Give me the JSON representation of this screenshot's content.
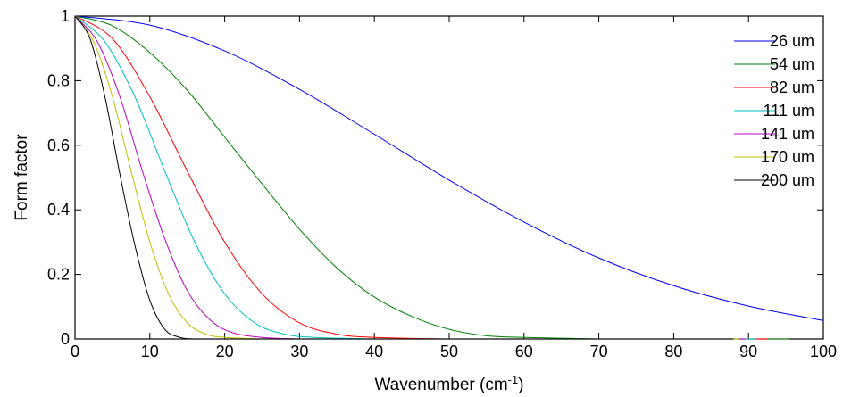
{
  "chart_data": {
    "type": "line",
    "title": "",
    "xlabel": "Wavenumber  (cm",
    "xlabel_sup": "-1",
    "xlabel_end": ")",
    "ylabel": "Form factor",
    "xlim": [
      0,
      100
    ],
    "ylim": [
      0,
      1
    ],
    "xticks": [
      0,
      10,
      20,
      30,
      40,
      50,
      60,
      70,
      80,
      90,
      100
    ],
    "yticks": [
      0,
      0.2,
      0.4,
      0.6,
      0.8,
      1
    ],
    "xtick_labels": [
      "0",
      "10",
      "20",
      "30",
      "40",
      "50",
      "60",
      "70",
      "80",
      "90",
      "100"
    ],
    "ytick_labels": [
      "0",
      "0.2",
      "0.4",
      "0.6",
      "0.8",
      "1"
    ],
    "grid": false,
    "legend_position": "top-right",
    "series": [
      {
        "name": "26 um",
        "color": "#0000ff",
        "x": [
          0,
          10,
          20,
          30,
          40,
          50,
          60,
          70,
          80,
          90,
          100
        ],
        "y": [
          1.0,
          0.972,
          0.892,
          0.773,
          0.634,
          0.492,
          0.362,
          0.251,
          0.165,
          0.102,
          0.057
        ]
      },
      {
        "name": "54 um",
        "color": "#008000",
        "x": [
          0,
          5,
          10,
          15,
          20,
          25,
          30,
          35,
          40,
          45,
          50,
          55,
          60,
          70
        ],
        "y": [
          1.0,
          0.97,
          0.887,
          0.77,
          0.625,
          0.48,
          0.34,
          0.22,
          0.13,
          0.07,
          0.03,
          0.01,
          0.005,
          0.0
        ]
      },
      {
        "name": "82 um",
        "color": "#ff0000",
        "x": [
          0,
          5,
          10,
          15,
          20,
          25,
          30,
          35,
          40,
          50
        ],
        "y": [
          1.0,
          0.93,
          0.75,
          0.52,
          0.3,
          0.14,
          0.05,
          0.015,
          0.005,
          0.0
        ]
      },
      {
        "name": "111 um",
        "color": "#00bfbf",
        "x": [
          0,
          4,
          8,
          12,
          16,
          20,
          24,
          28,
          32,
          40
        ],
        "y": [
          1.0,
          0.92,
          0.75,
          0.52,
          0.3,
          0.14,
          0.05,
          0.015,
          0.005,
          0.0
        ]
      },
      {
        "name": "141 um",
        "color": "#bf00bf",
        "x": [
          0,
          3,
          6,
          9,
          12,
          15,
          18,
          21,
          25,
          30
        ],
        "y": [
          1.0,
          0.92,
          0.75,
          0.52,
          0.31,
          0.15,
          0.06,
          0.02,
          0.005,
          0.0
        ]
      },
      {
        "name": "170 um",
        "color": "#bfbf00",
        "x": [
          0,
          2.5,
          5,
          7.5,
          10,
          12.5,
          15,
          17.5,
          20,
          25
        ],
        "y": [
          1.0,
          0.92,
          0.75,
          0.52,
          0.3,
          0.14,
          0.05,
          0.015,
          0.005,
          0.0
        ]
      },
      {
        "name": "200 um",
        "color": "#000000",
        "x": [
          0,
          2,
          4,
          6,
          8,
          10,
          12,
          14,
          16,
          20
        ],
        "y": [
          1.0,
          0.93,
          0.75,
          0.51,
          0.29,
          0.12,
          0.03,
          0.005,
          0.0,
          0.0
        ]
      }
    ]
  }
}
